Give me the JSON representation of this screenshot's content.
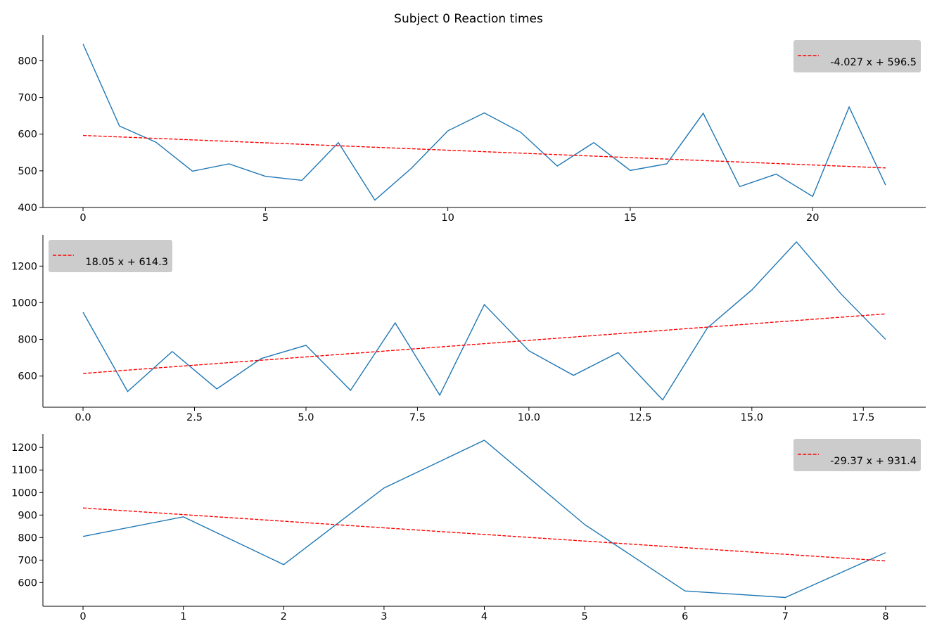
{
  "figure": {
    "title": "Subject 0 Reaction times"
  },
  "colors": {
    "series_line": "#1f77b4",
    "fit_line": "#ff0000",
    "legend_bg": "#cccccc",
    "axis": "#000000"
  },
  "chart_data": [
    {
      "type": "line",
      "title": "",
      "xlabel": "",
      "ylabel": "",
      "xlim": [
        -1.1,
        23.1
      ],
      "ylim": [
        400,
        870
      ],
      "x_ticks": [
        0,
        5,
        10,
        15,
        20
      ],
      "x_tick_labels": [
        "0",
        "5",
        "10",
        "15",
        "20"
      ],
      "y_ticks": [
        400,
        500,
        600,
        700,
        800
      ],
      "y_tick_labels": [
        "400",
        "500",
        "600",
        "700",
        "800"
      ],
      "grid": false,
      "legend_position": "top-right",
      "series": [
        {
          "style": "solid",
          "x": [
            0,
            1,
            2,
            3,
            4,
            5,
            6,
            7,
            8,
            9,
            10,
            11,
            12,
            13,
            14,
            15,
            16,
            17,
            18,
            19,
            20,
            21,
            22
          ],
          "values": [
            846,
            622,
            578,
            499,
            519,
            485,
            474,
            577,
            420,
            507,
            609,
            658,
            605,
            513,
            577,
            501,
            519,
            657,
            457,
            491,
            430,
            674,
            461
          ]
        },
        {
          "name": "-4.027 x + 596.5",
          "style": "dashed",
          "x": [
            0,
            22
          ],
          "values": [
            596.5,
            507.9
          ]
        }
      ],
      "legend": [
        "-4.027 x + 596.5"
      ]
    },
    {
      "type": "line",
      "title": "",
      "xlabel": "",
      "ylabel": "",
      "xlim": [
        -0.9,
        18.9
      ],
      "ylim": [
        430,
        1370
      ],
      "x_ticks": [
        0,
        2.5,
        5,
        7.5,
        10,
        12.5,
        15,
        17.5
      ],
      "x_tick_labels": [
        "0.0",
        "2.5",
        "5.0",
        "7.5",
        "10.0",
        "12.5",
        "15.0",
        "17.5"
      ],
      "y_ticks": [
        600,
        800,
        1000,
        1200
      ],
      "y_tick_labels": [
        "600",
        "800",
        "1000",
        "1200"
      ],
      "grid": false,
      "legend_position": "top-left",
      "series": [
        {
          "style": "solid",
          "x": [
            0,
            1,
            2,
            3,
            4,
            5,
            6,
            7,
            8,
            9,
            10,
            11,
            12,
            13,
            14,
            15,
            16,
            17,
            18
          ],
          "values": [
            948,
            516,
            734,
            530,
            696,
            768,
            522,
            890,
            496,
            990,
            738,
            604,
            728,
            470,
            862,
            1070,
            1332,
            1048,
            800
          ]
        },
        {
          "name": "18.05 x + 614.3",
          "style": "dashed",
          "x": [
            0,
            18
          ],
          "values": [
            614.3,
            939.2
          ]
        }
      ],
      "legend": [
        "18.05 x + 614.3"
      ]
    },
    {
      "type": "line",
      "title": "",
      "xlabel": "",
      "ylabel": "",
      "xlim": [
        -0.4,
        8.4
      ],
      "ylim": [
        495,
        1260
      ],
      "x_ticks": [
        0,
        1,
        2,
        3,
        4,
        5,
        6,
        7,
        8
      ],
      "x_tick_labels": [
        "0",
        "1",
        "2",
        "3",
        "4",
        "5",
        "6",
        "7",
        "8"
      ],
      "y_ticks": [
        600,
        700,
        800,
        900,
        1000,
        1100,
        1200
      ],
      "y_tick_labels": [
        "600",
        "700",
        "800",
        "900",
        "1000",
        "1100",
        "1200"
      ],
      "grid": false,
      "legend_position": "top-right",
      "series": [
        {
          "style": "solid",
          "x": [
            0,
            1,
            2,
            3,
            4,
            5,
            6,
            7,
            8
          ],
          "values": [
            805,
            892,
            680,
            1020,
            1232,
            858,
            563,
            534,
            733
          ]
        },
        {
          "name": "-29.37 x + 931.4",
          "style": "dashed",
          "x": [
            0,
            8
          ],
          "values": [
            931.4,
            696.4
          ]
        }
      ],
      "legend": [
        "-29.37 x + 931.4"
      ]
    }
  ]
}
